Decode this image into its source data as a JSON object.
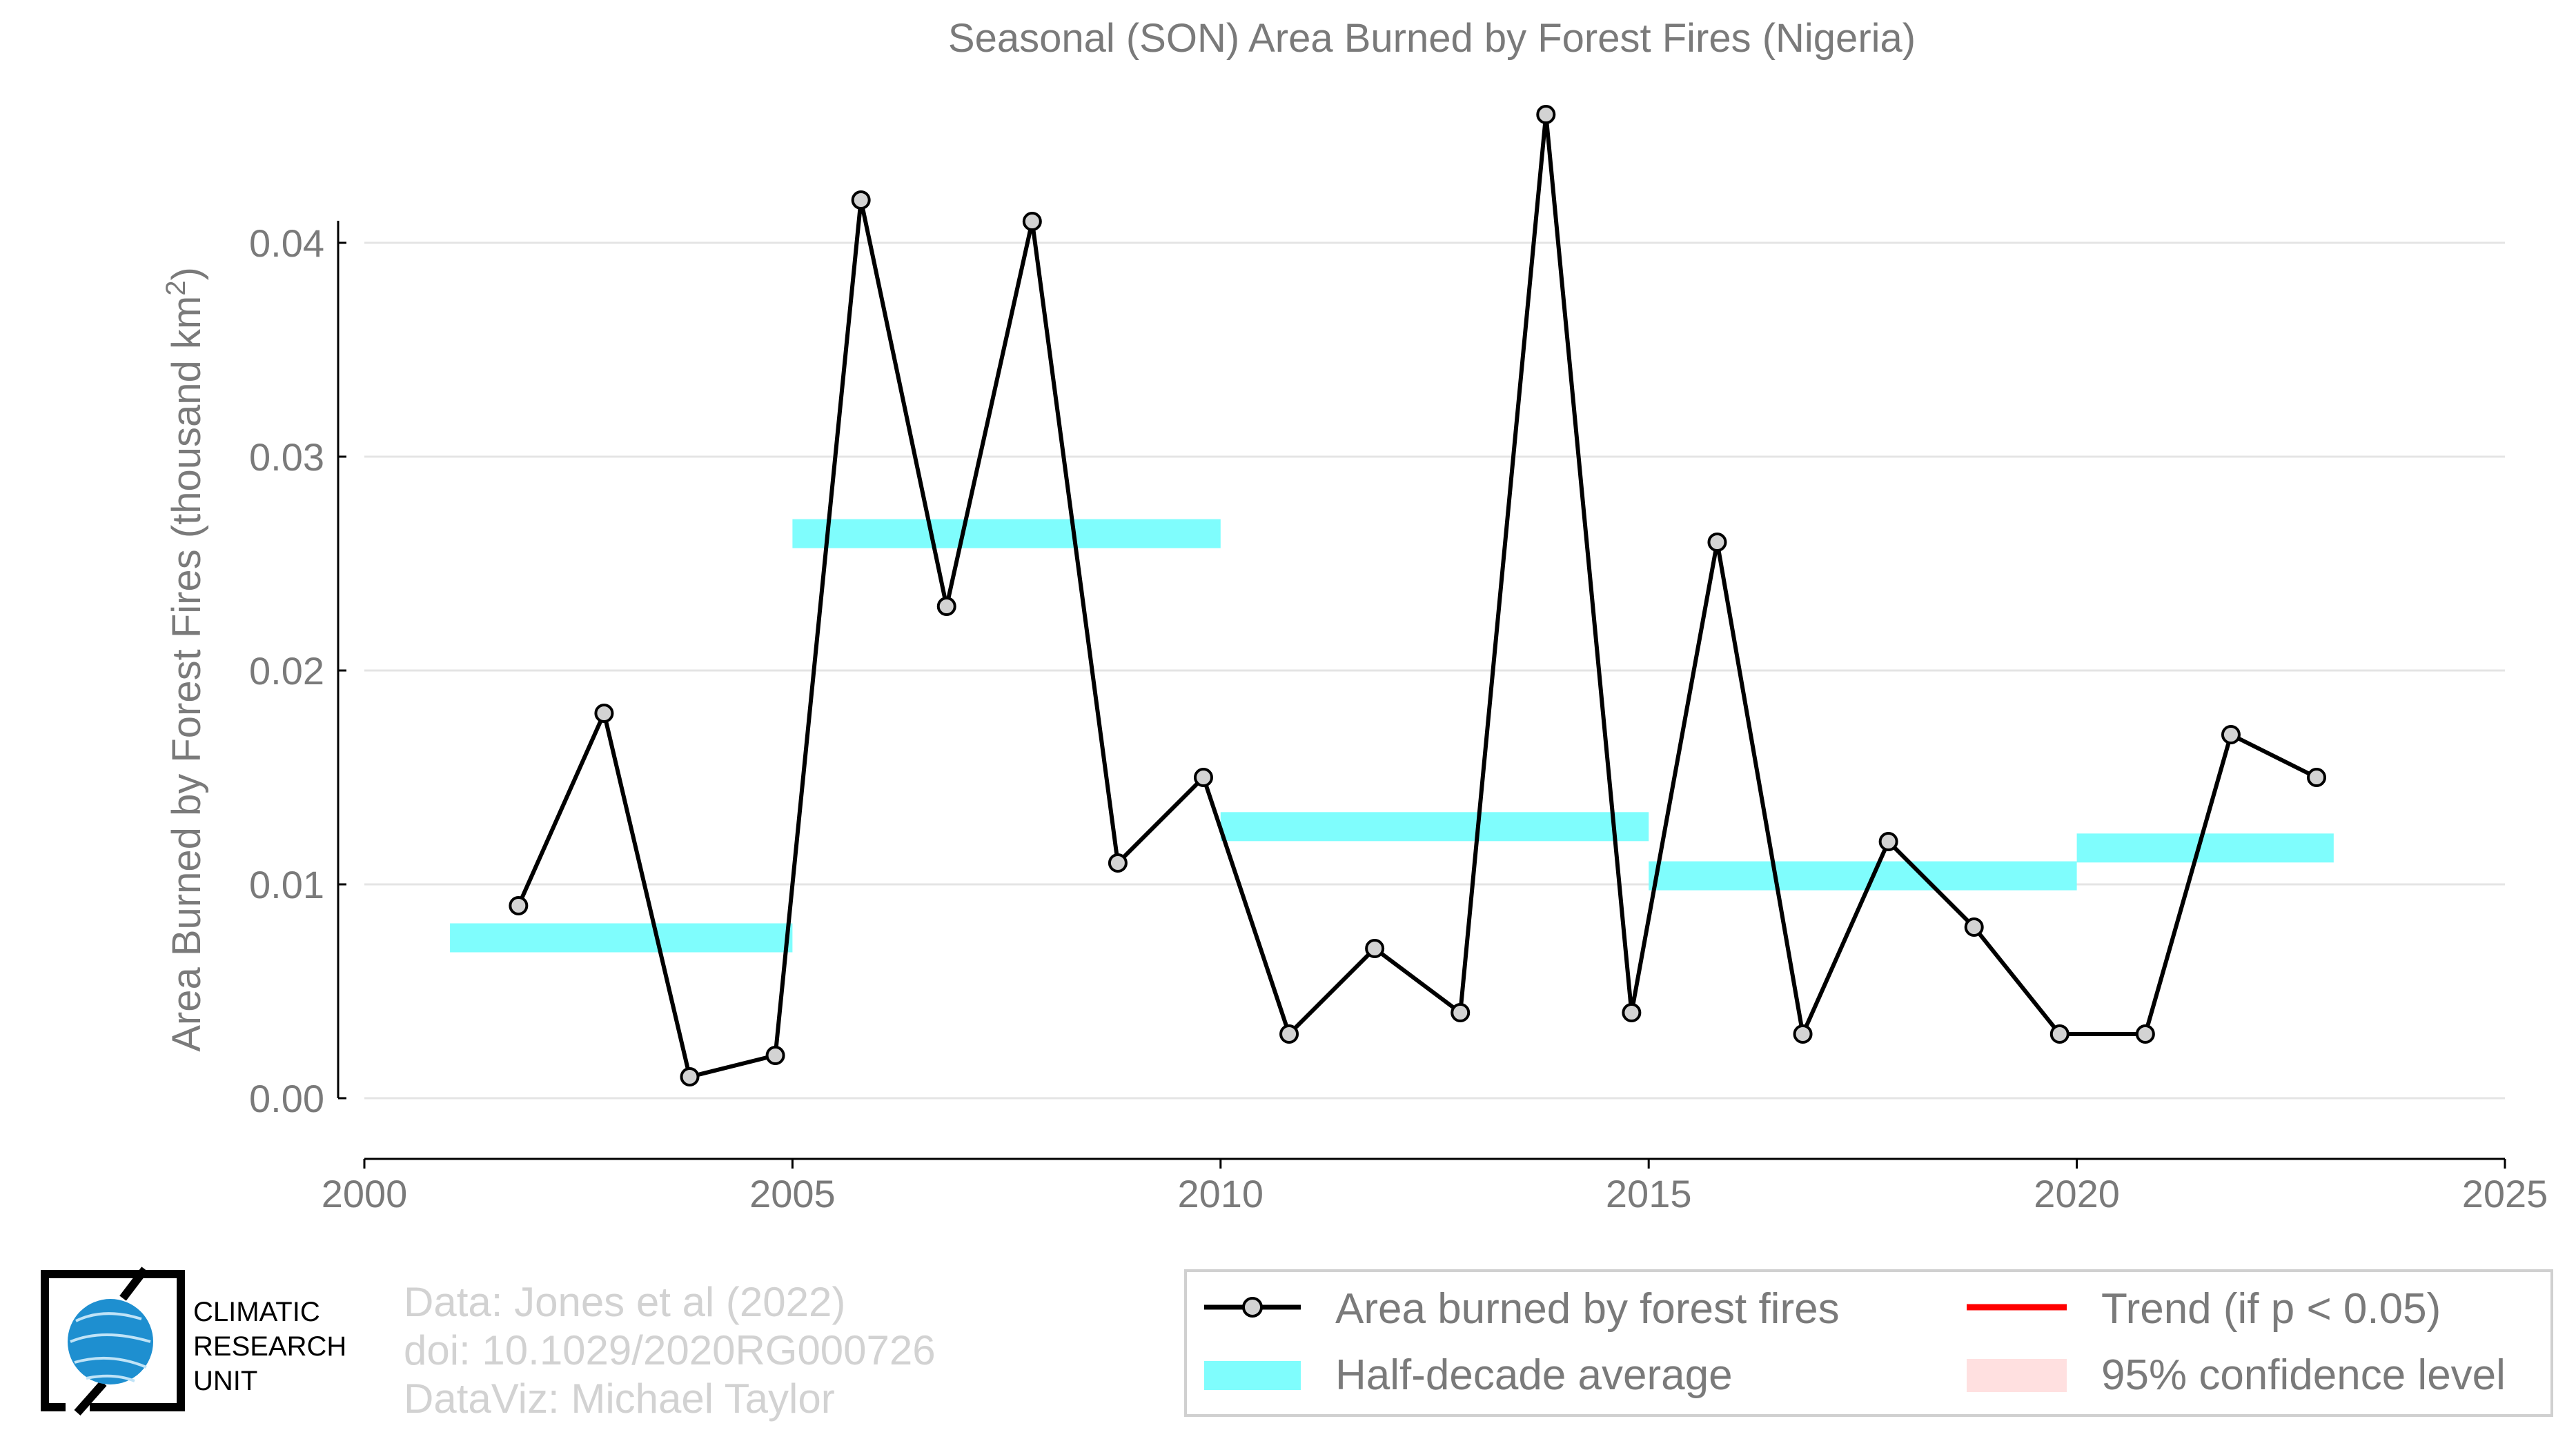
{
  "chart_data": {
    "type": "line",
    "title": "Seasonal (SON) Area Burned by Forest Fires (Nigeria)",
    "ylabel_main": "Area Burned by Forest Fires (thousand km",
    "ylabel_sup": "2",
    "ylabel_close": ")",
    "xlim": [
      2000,
      2025
    ],
    "ylim": [
      0,
      0.046
    ],
    "x_ticks": [
      2000,
      2005,
      2010,
      2015,
      2020,
      2025
    ],
    "x_tick_labels": [
      "2000",
      "2005",
      "2010",
      "2015",
      "2020",
      "2025"
    ],
    "y_ticks": [
      0,
      0.01,
      0.02,
      0.03,
      0.04
    ],
    "y_tick_labels": [
      "0.00",
      "0.01",
      "0.02",
      "0.03",
      "0.04"
    ],
    "grid": "horizontal",
    "series": [
      {
        "name": "Area burned by forest fires",
        "color": "#000000",
        "marker_fill": "#d3d3d3",
        "x": [
          2001.8,
          2002.8,
          2003.8,
          2004.8,
          2005.8,
          2006.8,
          2007.8,
          2008.8,
          2009.8,
          2010.8,
          2011.8,
          2012.8,
          2013.8,
          2014.8,
          2015.8,
          2016.8,
          2017.8,
          2018.8,
          2019.8,
          2020.8,
          2021.8,
          2022.8
        ],
        "values": [
          0.009,
          0.018,
          0.001,
          0.002,
          0.042,
          0.023,
          0.041,
          0.011,
          0.015,
          0.003,
          0.007,
          0.004,
          0.046,
          0.004,
          0.026,
          0.003,
          0.012,
          0.008,
          0.003,
          0.003,
          0.017,
          0.015
        ]
      }
    ],
    "half_decade_average": {
      "name": "Half-decade average",
      "color": "#7ffdfd",
      "segments": [
        {
          "x_start": 2001,
          "x_end": 2005,
          "value": 0.0075
        },
        {
          "x_start": 2005,
          "x_end": 2010,
          "value": 0.0264
        },
        {
          "x_start": 2010,
          "x_end": 2015,
          "value": 0.0127
        },
        {
          "x_start": 2015,
          "x_end": 2020,
          "value": 0.0104
        },
        {
          "x_start": 2020,
          "x_end": 2023,
          "value": 0.0117
        }
      ]
    },
    "legend": {
      "placement": "bottom-right",
      "items": [
        {
          "label": "Area burned by forest fires",
          "kind": "line-marker",
          "color": "#000000"
        },
        {
          "label": "Trend (if p < 0.05)",
          "kind": "line",
          "color": "#ff0000"
        },
        {
          "label": "Half-decade average",
          "kind": "band",
          "color": "#7ffdfd"
        },
        {
          "label": "95% confidence level",
          "kind": "band",
          "color": "#ffe0e0"
        }
      ]
    }
  },
  "credits": {
    "lines": [
      "Data: Jones et al (2022)",
      "doi: 10.1029/2020RG000726",
      "DataViz: Michael Taylor"
    ]
  },
  "logo": {
    "lines": [
      "CLIMATIC",
      "RESEARCH",
      "UNIT"
    ],
    "globe_color": "#1e8fd0"
  }
}
